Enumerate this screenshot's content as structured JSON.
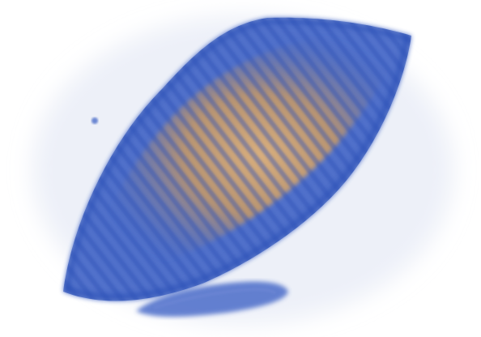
{
  "scene": {
    "subject": "volumetric-render",
    "colors": {
      "background": "#ffffff",
      "halo": "#dfe4f3",
      "shell": "#3f63c6",
      "shell_dark": "#2f53b8",
      "core": "#c99a63",
      "core_light": "#e0b27a"
    }
  }
}
